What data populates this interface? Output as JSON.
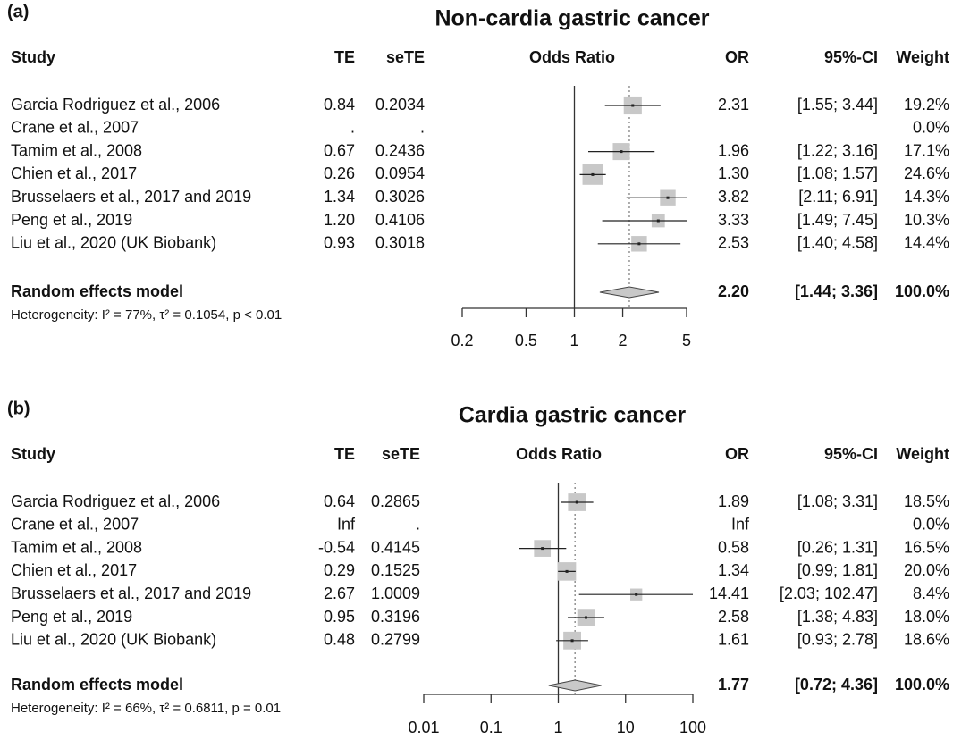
{
  "chart_data": [
    {
      "type": "forest",
      "panel_label": "(a)",
      "title": "Non-cardia gastric cancer",
      "headers": {
        "study": "Study",
        "te": "TE",
        "sete": "seTE",
        "plot": "Odds Ratio",
        "or": "OR",
        "ci": "95%-CI",
        "weight": "Weight"
      },
      "studies": [
        "Garcia Rodriguez et al., 2006",
        "Crane et al., 2007",
        "Tamim et al., 2008",
        "Chien et al., 2017",
        "Brusselaers et al., 2017 and 2019",
        "Peng et al., 2019",
        "Liu et al., 2020 (UK Biobank)"
      ],
      "te": [
        "0.84",
        ".",
        "0.67",
        "0.26",
        "1.34",
        "1.20",
        "0.93"
      ],
      "sete": [
        "0.2034",
        ".",
        "0.2436",
        "0.0954",
        "0.3026",
        "0.4106",
        "0.3018"
      ],
      "values": [
        2.31,
        null,
        1.96,
        1.3,
        3.82,
        3.33,
        2.53
      ],
      "value_labels": [
        "2.31",
        null,
        "1.96",
        "1.30",
        "3.82",
        "3.33",
        "2.53"
      ],
      "ci_lower": [
        1.55,
        null,
        1.22,
        1.08,
        2.11,
        1.49,
        1.4
      ],
      "ci_upper": [
        3.44,
        null,
        3.16,
        1.57,
        6.91,
        7.45,
        4.58
      ],
      "ci_labels": [
        "[1.55; 3.44]",
        null,
        "[1.22; 3.16]",
        "[1.08; 1.57]",
        "[2.11; 6.91]",
        "[1.49; 7.45]",
        "[1.40; 4.58]"
      ],
      "weights": [
        19.2,
        0.0,
        17.1,
        24.6,
        14.3,
        10.3,
        14.4
      ],
      "weight_labels": [
        "19.2%",
        "0.0%",
        "17.1%",
        "24.6%",
        "14.3%",
        "10.3%",
        "14.4%"
      ],
      "summary": {
        "name": "Random effects model",
        "value": 2.2,
        "value_label": "2.20",
        "ci_lower": 1.44,
        "ci_upper": 3.36,
        "ci_label": "[1.44; 3.36]",
        "weight": 100,
        "weight_label": "100.0%",
        "heterogeneity": "Heterogeneity: I² = 77%, τ² = 0.1054, p < 0.01"
      },
      "xlim": [
        0.2,
        5
      ],
      "xticks": [
        0.2,
        0.5,
        1,
        2,
        5
      ],
      "log_x": true,
      "reference_line": 1,
      "color": "#c8c8c8"
    },
    {
      "type": "forest",
      "panel_label": "(b)",
      "title": "Cardia gastric cancer",
      "headers": {
        "study": "Study",
        "te": "TE",
        "sete": "seTE",
        "plot": "Odds Ratio",
        "or": "OR",
        "ci": "95%-CI",
        "weight": "Weight"
      },
      "studies": [
        "Garcia Rodriguez et al., 2006",
        "Crane et al., 2007",
        "Tamim et al., 2008",
        "Chien et al., 2017",
        "Brusselaers et al., 2017 and 2019",
        "Peng et al., 2019",
        "Liu et al., 2020 (UK Biobank)"
      ],
      "te": [
        "0.64",
        "Inf",
        "-0.54",
        "0.29",
        "2.67",
        "0.95",
        "0.48"
      ],
      "sete": [
        "0.2865",
        ".",
        "0.4145",
        "0.1525",
        "1.0009",
        "0.3196",
        "0.2799"
      ],
      "values": [
        1.89,
        null,
        0.58,
        1.34,
        14.41,
        2.58,
        1.61
      ],
      "value_labels": [
        "1.89",
        "Inf",
        "0.58",
        "1.34",
        "14.41",
        "2.58",
        "1.61"
      ],
      "ci_lower": [
        1.08,
        null,
        0.26,
        0.99,
        2.03,
        1.38,
        0.93
      ],
      "ci_upper": [
        3.31,
        null,
        1.31,
        1.81,
        102.47,
        4.83,
        2.78
      ],
      "ci_labels": [
        "[1.08; 3.31]",
        null,
        "[0.26; 1.31]",
        "[0.99; 1.81]",
        "[2.03; 102.47]",
        "[1.38; 4.83]",
        "[0.93; 2.78]"
      ],
      "weights": [
        18.5,
        0.0,
        16.5,
        20.0,
        8.4,
        18.0,
        18.6
      ],
      "weight_labels": [
        "18.5%",
        "0.0%",
        "16.5%",
        "20.0%",
        "8.4%",
        "18.0%",
        "18.6%"
      ],
      "summary": {
        "name": "Random effects model",
        "value": 1.77,
        "value_label": "1.77",
        "ci_lower": 0.72,
        "ci_upper": 4.36,
        "ci_label": "[0.72; 4.36]",
        "weight": 100,
        "weight_label": "100.0%",
        "heterogeneity": "Heterogeneity: I² = 66%, τ² = 0.6811, p = 0.01"
      },
      "xlim": [
        0.01,
        100
      ],
      "xticks": [
        0.01,
        0.1,
        1,
        10,
        100
      ],
      "log_x": true,
      "reference_line": 1,
      "color": "#c8c8c8"
    }
  ]
}
